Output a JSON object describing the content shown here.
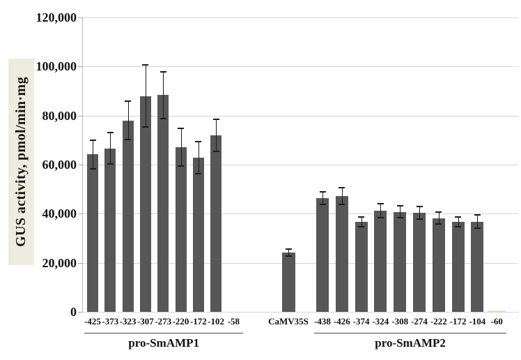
{
  "chart_data": {
    "type": "bar",
    "title": "",
    "xlabel": "",
    "ylabel": "GUS activity, pmol/min·mg",
    "ylim": [
      0,
      120000
    ],
    "ytick_step": 20000,
    "ytick_labels": [
      "0",
      "20,000",
      "40,000",
      "60,000",
      "80,000",
      "100,000",
      "120,000"
    ],
    "grid": true,
    "legend": "none",
    "bar_color": "#575757",
    "error_bar_color": "#1c1c1c",
    "highlight_bar_color": "#f0e2c4",
    "axis_title_background": "#eeecdf",
    "groups": [
      {
        "name": "pro-SmAMP1",
        "bars": [
          {
            "label": "-425",
            "value": 64200,
            "error": 5800
          },
          {
            "label": "-373",
            "value": 66600,
            "error": 6400
          },
          {
            "label": "-323",
            "value": 78000,
            "error": 7900
          },
          {
            "label": "-307",
            "value": 88000,
            "error": 12700
          },
          {
            "label": "-273",
            "value": 88300,
            "error": 9600
          },
          {
            "label": "-220",
            "value": 67100,
            "error": 7600
          },
          {
            "label": "-172",
            "value": 62900,
            "error": 6500
          },
          {
            "label": "-102",
            "value": 71900,
            "error": 6600
          },
          {
            "label": "-58",
            "value": 0,
            "error": null
          }
        ]
      },
      {
        "name": "",
        "bars": [
          {
            "label": "CaMV35S",
            "value": 24200,
            "error": 1400
          }
        ]
      },
      {
        "name": "pro-SmAMP2",
        "bars": [
          {
            "label": "-438",
            "value": 46300,
            "error": 2500
          },
          {
            "label": "-426",
            "value": 47200,
            "error": 3500
          },
          {
            "label": "-374",
            "value": 36800,
            "error": 2000
          },
          {
            "label": "-324",
            "value": 41200,
            "error": 2800
          },
          {
            "label": "-308",
            "value": 40800,
            "error": 2300
          },
          {
            "label": "-274",
            "value": 40300,
            "error": 2600
          },
          {
            "label": "-222",
            "value": 38200,
            "error": 2500
          },
          {
            "label": "-172",
            "value": 36800,
            "error": 2000
          },
          {
            "label": "-104",
            "value": 36700,
            "error": 2700
          },
          {
            "label": "-60",
            "value": 700,
            "error": null,
            "color": "#f0e2c4"
          }
        ]
      }
    ]
  }
}
